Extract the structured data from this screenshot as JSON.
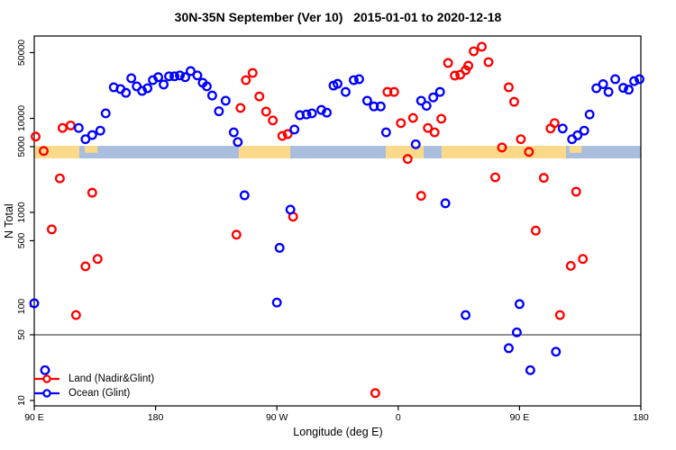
{
  "chart_data": {
    "type": "scatter",
    "title": "30N-35N September (Ver 10)   2015-01-01 to 2020-12-18",
    "xlabel": "Longitude (deg E)",
    "ylabel": "N Total",
    "x_axis": {
      "range": [
        90,
        540
      ],
      "unit": "degrees east, wrapping past 180",
      "ticks": [
        {
          "v": 90,
          "label": "90 E"
        },
        {
          "v": 180,
          "label": "180"
        },
        {
          "v": 270,
          "label": "90 W"
        },
        {
          "v": 360,
          "label": "0"
        },
        {
          "v": 450,
          "label": "90 E"
        },
        {
          "v": 540,
          "label": "180"
        }
      ]
    },
    "y_axis": {
      "scale": "log",
      "range": [
        9,
        75000
      ],
      "ticks": [
        {
          "v": 10,
          "label": "10"
        },
        {
          "v": 50,
          "label": "50"
        },
        {
          "v": 100,
          "label": "100"
        },
        {
          "v": 500,
          "label": "500"
        },
        {
          "v": 1000,
          "label": "1000"
        },
        {
          "v": 5000,
          "label": "5000"
        },
        {
          "v": 10000,
          "label": "10000"
        },
        {
          "v": 50000,
          "label": "50000"
        }
      ]
    },
    "reference_line": {
      "y": 50,
      "color": "#222222"
    },
    "map_band": {
      "n_top": 5100,
      "n_bottom": 3750,
      "ocean_color": "#A9BEDC",
      "land_color": "#FBD98A",
      "segments": [
        {
          "type": "land",
          "from": 90,
          "to": 123.4
        },
        {
          "type": "ocean",
          "from": 123.4,
          "to": 241.8
        },
        {
          "type": "land",
          "from": 241.8,
          "to": 279.9
        },
        {
          "type": "ocean",
          "from": 279.9,
          "to": 350.8
        },
        {
          "type": "land",
          "from": 350.8,
          "to": 378.9
        },
        {
          "type": "ocean",
          "from": 378.9,
          "to": 392.2
        },
        {
          "type": "land",
          "from": 392.2,
          "to": 484.5
        },
        {
          "type": "ocean",
          "from": 484.5,
          "to": 540
        }
      ],
      "islands": [
        {
          "from": 127.5,
          "to": 137
        },
        {
          "from": 487,
          "to": 496
        }
      ]
    },
    "series": [
      {
        "name": "Land (Nadir&Glint)",
        "color": "#FF0000",
        "points": [
          [
            91,
            6400
          ],
          [
            97,
            4500
          ],
          [
            103,
            660
          ],
          [
            109,
            2300
          ],
          [
            111,
            7900
          ],
          [
            117,
            8400
          ],
          [
            121,
            81
          ],
          [
            128,
            267
          ],
          [
            133,
            1620
          ],
          [
            137,
            320
          ],
          [
            240,
            580
          ],
          [
            243,
            12900
          ],
          [
            247,
            25500
          ],
          [
            252,
            30400
          ],
          [
            257,
            17100
          ],
          [
            262,
            11800
          ],
          [
            267,
            9500
          ],
          [
            274,
            6500
          ],
          [
            278,
            6800
          ],
          [
            282,
            900
          ],
          [
            343,
            12
          ],
          [
            352,
            19100
          ],
          [
            357,
            19100
          ],
          [
            362,
            8900
          ],
          [
            367,
            3700
          ],
          [
            371,
            10100
          ],
          [
            377,
            1500
          ],
          [
            382,
            7900
          ],
          [
            387,
            7100
          ],
          [
            392,
            9900
          ],
          [
            397,
            38800
          ],
          [
            402,
            28500
          ],
          [
            406,
            29100
          ],
          [
            410,
            32500
          ],
          [
            412,
            36300
          ],
          [
            416,
            51600
          ],
          [
            422,
            57700
          ],
          [
            427,
            39600
          ],
          [
            432,
            2360
          ],
          [
            437,
            4900
          ],
          [
            442,
            21400
          ],
          [
            446,
            15000
          ],
          [
            451,
            6000
          ],
          [
            457,
            4400
          ],
          [
            462,
            640
          ],
          [
            468,
            2330
          ],
          [
            473,
            7800
          ],
          [
            476,
            8900
          ],
          [
            480,
            81
          ],
          [
            488,
            270
          ],
          [
            492,
            1660
          ],
          [
            497,
            320
          ]
        ]
      },
      {
        "name": "Ocean (Glint)",
        "color": "#0000FF",
        "points": [
          [
            90,
            108
          ],
          [
            98,
            21
          ],
          [
            123,
            7900
          ],
          [
            128,
            6000
          ],
          [
            133,
            6650
          ],
          [
            139,
            7400
          ],
          [
            143,
            11300
          ],
          [
            149,
            21400
          ],
          [
            154,
            20500
          ],
          [
            158,
            18700
          ],
          [
            162,
            26700
          ],
          [
            166,
            21900
          ],
          [
            170,
            19600
          ],
          [
            174,
            20900
          ],
          [
            178,
            25500
          ],
          [
            182,
            27400
          ],
          [
            186,
            22900
          ],
          [
            190,
            28000
          ],
          [
            194,
            28000
          ],
          [
            198,
            28600
          ],
          [
            202,
            27400
          ],
          [
            206,
            31800
          ],
          [
            211,
            28600
          ],
          [
            215,
            23900
          ],
          [
            218,
            21900
          ],
          [
            222,
            17500
          ],
          [
            227,
            11900
          ],
          [
            232,
            15400
          ],
          [
            238,
            7100
          ],
          [
            241,
            5600
          ],
          [
            246,
            1520
          ],
          [
            270,
            110
          ],
          [
            272,
            420
          ],
          [
            280,
            1070
          ],
          [
            283,
            7600
          ],
          [
            287,
            10800
          ],
          [
            292,
            11000
          ],
          [
            296,
            11300
          ],
          [
            303,
            12300
          ],
          [
            307,
            11500
          ],
          [
            312,
            22300
          ],
          [
            315,
            23300
          ],
          [
            321,
            19100
          ],
          [
            327,
            25500
          ],
          [
            331,
            26100
          ],
          [
            337,
            15400
          ],
          [
            342,
            13400
          ],
          [
            347,
            13400
          ],
          [
            351,
            7100
          ],
          [
            373,
            5300
          ],
          [
            377,
            15400
          ],
          [
            381,
            13600
          ],
          [
            386,
            16700
          ],
          [
            391,
            19100
          ],
          [
            395,
            1250
          ],
          [
            410,
            81
          ],
          [
            442,
            36
          ],
          [
            448,
            53
          ],
          [
            450,
            106
          ],
          [
            458,
            21
          ],
          [
            477,
            33
          ],
          [
            482,
            7800
          ],
          [
            489,
            6000
          ],
          [
            493,
            6600
          ],
          [
            498,
            7400
          ],
          [
            502,
            11000
          ],
          [
            507,
            20900
          ],
          [
            512,
            23100
          ],
          [
            516,
            19100
          ],
          [
            521,
            26100
          ],
          [
            527,
            21100
          ],
          [
            531,
            20200
          ],
          [
            535,
            24900
          ],
          [
            539,
            26100
          ]
        ]
      }
    ],
    "legend_position": "bottom-left"
  }
}
